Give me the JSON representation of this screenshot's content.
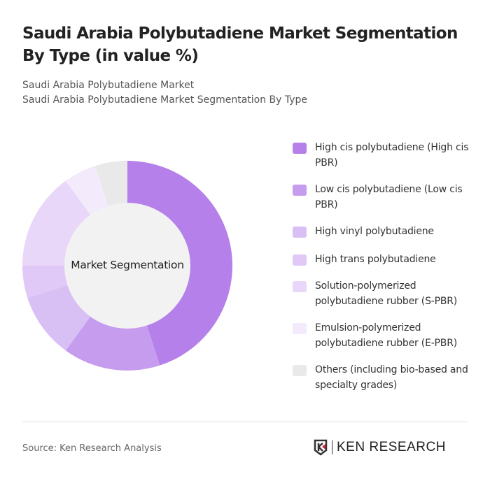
{
  "title": "Saudi Arabia Polybutadiene Market Segmentation By Type (in value %)",
  "subtitle1": "Saudi Arabia Polybutadiene Market",
  "subtitle2": "Saudi Arabia Polybutadiene Market Segmentation By Type",
  "center_label": "Market Segmentation",
  "source": "Source: Ken Research Analysis",
  "logo_text": "KEN RESEARCH",
  "chart_data": {
    "type": "pie",
    "donut": true,
    "legend_position": "right",
    "categories": [
      "High cis polybutadiene (High cis PBR)",
      "Low cis polybutadiene (Low cis PBR)",
      "High vinyl polybutadiene",
      "High trans polybutadiene",
      "Solution-polymerized polybutadiene rubber (S-PBR)",
      "Emulsion-polymerized polybutadiene rubber (E-PBR)",
      "Others (including bio-based and specialty grades)"
    ],
    "values": [
      45,
      15,
      10,
      5,
      15,
      5,
      5
    ],
    "colors": [
      "#b580ea",
      "#c59cee",
      "#d9c0f4",
      "#e0c9f6",
      "#e8d7f8",
      "#f3ebfc",
      "#e9e9e9"
    ]
  }
}
